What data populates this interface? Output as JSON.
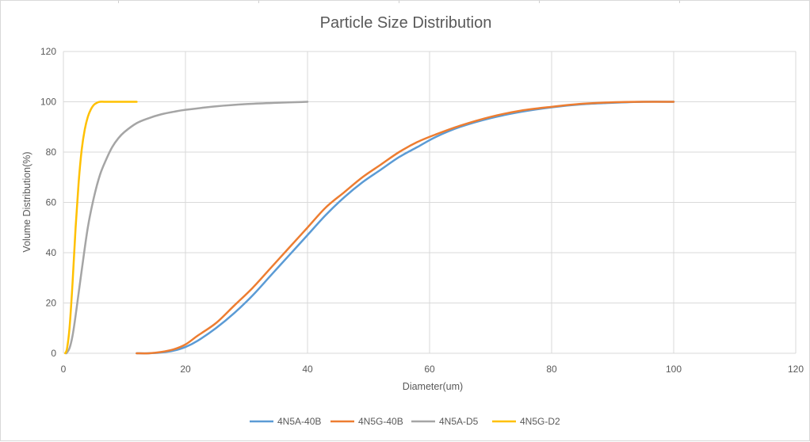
{
  "chart_data": {
    "type": "scatter",
    "title": "Particle Size Distribution",
    "xlabel": "Diameter(um)",
    "ylabel": "Volume Distribution(%)",
    "xlim": [
      0,
      120
    ],
    "ylim": [
      0,
      120
    ],
    "xticks": [
      0,
      20,
      40,
      60,
      80,
      100,
      120
    ],
    "yticks": [
      0,
      20,
      40,
      60,
      80,
      100,
      120
    ],
    "grid": true,
    "legend_position": "bottom",
    "smooth_lines": true,
    "series": [
      {
        "name": "4N5A-40B",
        "color": "#5B9BD5",
        "x": [
          12,
          14,
          16,
          18,
          20,
          22,
          25,
          28,
          31,
          34,
          37,
          40,
          43,
          46,
          49,
          52,
          55,
          58,
          61,
          65,
          70,
          75,
          80,
          85,
          90,
          95,
          100
        ],
        "y": [
          0,
          0,
          0.3,
          1,
          2.5,
          5,
          10,
          16,
          23,
          31,
          39,
          47,
          55,
          62,
          68,
          73,
          78,
          82,
          86,
          90,
          93.5,
          96,
          97.8,
          99,
          99.6,
          100,
          100
        ]
      },
      {
        "name": "4N5G-40B",
        "color": "#ED7D31",
        "x": [
          12,
          14,
          16,
          18,
          20,
          22,
          25,
          28,
          31,
          34,
          37,
          40,
          43,
          46,
          49,
          52,
          55,
          58,
          61,
          65,
          70,
          75,
          80,
          85,
          90,
          95,
          100
        ],
        "y": [
          0,
          0,
          0.5,
          1.5,
          3.5,
          7,
          12,
          19,
          26,
          34,
          42,
          50,
          58,
          64,
          70,
          75,
          80,
          84,
          87,
          90.5,
          94,
          96.5,
          98,
          99.2,
          99.8,
          100,
          100
        ]
      },
      {
        "name": "4N5A-D5",
        "color": "#A5A5A5",
        "x": [
          0.5,
          1,
          1.5,
          2,
          3,
          4,
          5,
          6,
          7,
          8,
          9,
          10,
          12,
          14,
          16,
          18,
          20,
          25,
          30,
          35,
          40
        ],
        "y": [
          0,
          2,
          7,
          15,
          33,
          50,
          62,
          71,
          77,
          82,
          85.5,
          88,
          91.5,
          93.5,
          95,
          96,
          96.8,
          98.2,
          99.1,
          99.6,
          100
        ]
      },
      {
        "name": "4N5G-D2",
        "color": "#FFC000",
        "x": [
          0.3,
          0.6,
          1,
          1.5,
          2,
          2.5,
          3,
          3.5,
          4,
          4.5,
          5,
          5.5,
          6,
          7,
          8,
          9,
          10,
          11,
          12
        ],
        "y": [
          0,
          2,
          10,
          28,
          50,
          68,
          81,
          89,
          94,
          97,
          98.8,
          99.6,
          100,
          100,
          100,
          100,
          100,
          100,
          100
        ]
      }
    ]
  }
}
